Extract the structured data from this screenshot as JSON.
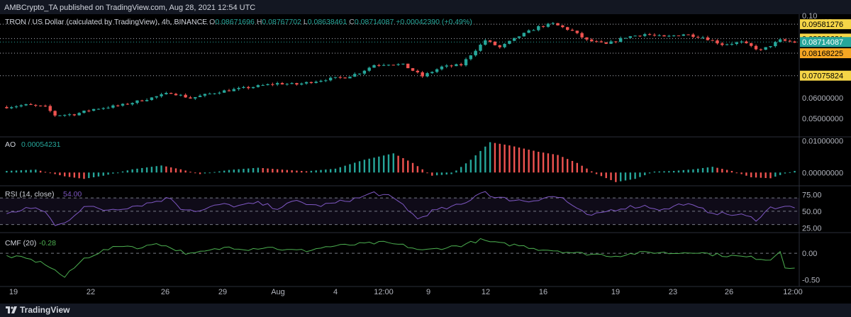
{
  "header": {
    "published": "AMBCrypto_TA published on TradingView.com, Aug 28, 2021 12:54 UTC"
  },
  "footer": {
    "brand": "TradingView"
  },
  "colors": {
    "up": "#26a69a",
    "down": "#ef5350",
    "rsi": "#7e57c2",
    "cmf": "#4caf50",
    "yellow": "#f5d547",
    "orange": "#f5a623",
    "teal": "#26a69a"
  },
  "chart_data": [
    {
      "type": "candlestick",
      "title": "TRON / US Dollar (calculated by TradingView), 4h, BINANCE",
      "ohlc": {
        "o_label": "O",
        "o": "0.08671696",
        "h_label": "H",
        "h": "0.08767702",
        "l_label": "L",
        "l": "0.08638461",
        "c_label": "C",
        "c": "0.08714087",
        "change": "+0.00042390 (+0.49%)"
      },
      "currency": "USD",
      "y_ticks": [
        "0.10",
        "0.06000000",
        "0.05000000"
      ],
      "ylim": [
        0.042,
        0.1
      ],
      "levels": [
        {
          "value": 0.09581276,
          "label": "0.09581276",
          "style": "yellow"
        },
        {
          "value": 0.08880621,
          "label": "0.08880621",
          "style": "yellow"
        },
        {
          "value": 0.08714087,
          "label": "0.08714087",
          "style": "teal"
        },
        {
          "value": 0.08168225,
          "label": "0.08168225",
          "style": "orange"
        },
        {
          "value": 0.07075824,
          "label": "0.07075824",
          "style": "yellow"
        }
      ],
      "x_ticks": [
        "19",
        "22",
        "26",
        "29",
        "Aug",
        "4",
        "12:00",
        "9",
        "12",
        "16",
        "19",
        "23",
        "26",
        "12:00"
      ],
      "trend": [
        [
          0,
          0.0555
        ],
        [
          4,
          0.0565
        ],
        [
          8,
          0.0555
        ],
        [
          10,
          0.0515
        ],
        [
          14,
          0.052
        ],
        [
          18,
          0.0545
        ],
        [
          24,
          0.0565
        ],
        [
          30,
          0.06
        ],
        [
          34,
          0.0625
        ],
        [
          38,
          0.0598
        ],
        [
          44,
          0.063
        ],
        [
          50,
          0.065
        ],
        [
          56,
          0.067
        ],
        [
          60,
          0.0665
        ],
        [
          66,
          0.069
        ],
        [
          70,
          0.07
        ],
        [
          73,
          0.0722
        ],
        [
          76,
          0.076
        ],
        [
          79,
          0.0765
        ],
        [
          82,
          0.076
        ],
        [
          86,
          0.0705
        ],
        [
          90,
          0.075
        ],
        [
          94,
          0.076
        ],
        [
          96,
          0.081
        ],
        [
          99,
          0.088
        ],
        [
          102,
          0.0845
        ],
        [
          106,
          0.09
        ],
        [
          110,
          0.0945
        ],
        [
          113,
          0.096
        ],
        [
          117,
          0.0925
        ],
        [
          120,
          0.088
        ],
        [
          124,
          0.086
        ],
        [
          128,
          0.0895
        ],
        [
          132,
          0.091
        ],
        [
          136,
          0.0895
        ],
        [
          140,
          0.091
        ],
        [
          144,
          0.0895
        ],
        [
          148,
          0.086
        ],
        [
          152,
          0.087
        ],
        [
          156,
          0.083
        ],
        [
          160,
          0.088
        ],
        [
          163,
          0.087
        ]
      ]
    },
    {
      "type": "bar",
      "name": "AO",
      "last_value": "0.00054231",
      "y_ticks": [
        "0.01000000",
        "0.00000000"
      ],
      "ylim": [
        -0.0035,
        0.0105
      ],
      "trend": [
        [
          0,
          0.0005
        ],
        [
          6,
          0.0009
        ],
        [
          12,
          -0.0012
        ],
        [
          16,
          -0.002
        ],
        [
          20,
          -0.001
        ],
        [
          26,
          0.001
        ],
        [
          32,
          0.0022
        ],
        [
          36,
          0.001
        ],
        [
          40,
          -0.0005
        ],
        [
          46,
          0.0008
        ],
        [
          52,
          0.0015
        ],
        [
          58,
          0.0008
        ],
        [
          62,
          0.0004
        ],
        [
          68,
          0.0012
        ],
        [
          74,
          0.004
        ],
        [
          80,
          0.006
        ],
        [
          84,
          0.003
        ],
        [
          88,
          -0.001
        ],
        [
          92,
          -0.0005
        ],
        [
          96,
          0.004
        ],
        [
          100,
          0.0095
        ],
        [
          104,
          0.0085
        ],
        [
          110,
          0.0065
        ],
        [
          114,
          0.0055
        ],
        [
          118,
          0.003
        ],
        [
          122,
          -0.0005
        ],
        [
          126,
          -0.003
        ],
        [
          130,
          -0.002
        ],
        [
          134,
          0.0003
        ],
        [
          138,
          0.0005
        ],
        [
          142,
          0.001
        ],
        [
          146,
          0.0018
        ],
        [
          150,
          0.0005
        ],
        [
          154,
          -0.0015
        ],
        [
          158,
          -0.0018
        ],
        [
          161,
          -0.0003
        ],
        [
          163,
          0.0005
        ]
      ]
    },
    {
      "type": "line",
      "name": "RSI (14, close)",
      "last_value": "54.00",
      "y_ticks": [
        "75.00",
        "50.00",
        "25.00"
      ],
      "bands": [
        70,
        50,
        30
      ],
      "ylim": [
        20,
        85
      ],
      "trend": [
        [
          0,
          45
        ],
        [
          4,
          55
        ],
        [
          8,
          50
        ],
        [
          10,
          28
        ],
        [
          12,
          32
        ],
        [
          16,
          58
        ],
        [
          20,
          52
        ],
        [
          24,
          55
        ],
        [
          28,
          60
        ],
        [
          32,
          67
        ],
        [
          34,
          70
        ],
        [
          36,
          55
        ],
        [
          40,
          50
        ],
        [
          44,
          60
        ],
        [
          48,
          58
        ],
        [
          52,
          62
        ],
        [
          56,
          55
        ],
        [
          60,
          65
        ],
        [
          64,
          58
        ],
        [
          68,
          62
        ],
        [
          70,
          66
        ],
        [
          73,
          70
        ],
        [
          76,
          78
        ],
        [
          79,
          72
        ],
        [
          82,
          60
        ],
        [
          85,
          38
        ],
        [
          88,
          50
        ],
        [
          92,
          56
        ],
        [
          95,
          62
        ],
        [
          97,
          75
        ],
        [
          99,
          80
        ],
        [
          101,
          70
        ],
        [
          104,
          68
        ],
        [
          108,
          65
        ],
        [
          112,
          72
        ],
        [
          115,
          70
        ],
        [
          118,
          52
        ],
        [
          121,
          42
        ],
        [
          124,
          50
        ],
        [
          128,
          56
        ],
        [
          132,
          58
        ],
        [
          136,
          52
        ],
        [
          140,
          62
        ],
        [
          144,
          52
        ],
        [
          148,
          46
        ],
        [
          152,
          44
        ],
        [
          155,
          38
        ],
        [
          158,
          55
        ],
        [
          161,
          58
        ],
        [
          163,
          54
        ]
      ]
    },
    {
      "type": "line",
      "name": "CMF (20)",
      "last_value": "-0.28",
      "y_ticks": [
        "0.00",
        "-0.50"
      ],
      "ylim": [
        -0.6,
        0.35
      ],
      "trend": [
        [
          0,
          -0.05
        ],
        [
          4,
          -0.1
        ],
        [
          8,
          -0.2
        ],
        [
          12,
          -0.45
        ],
        [
          16,
          -0.1
        ],
        [
          20,
          0.05
        ],
        [
          24,
          0.15
        ],
        [
          28,
          0.1
        ],
        [
          31,
          0.2
        ],
        [
          34,
          0.1
        ],
        [
          38,
          -0.02
        ],
        [
          42,
          0.05
        ],
        [
          46,
          0.12
        ],
        [
          50,
          0.08
        ],
        [
          54,
          0.12
        ],
        [
          58,
          0.06
        ],
        [
          62,
          0.05
        ],
        [
          66,
          0.12
        ],
        [
          70,
          0.15
        ],
        [
          74,
          0.18
        ],
        [
          78,
          0.2
        ],
        [
          82,
          0.15
        ],
        [
          86,
          0.05
        ],
        [
          90,
          0.1
        ],
        [
          94,
          0.15
        ],
        [
          98,
          0.25
        ],
        [
          102,
          0.18
        ],
        [
          106,
          0.15
        ],
        [
          110,
          0.08
        ],
        [
          114,
          0.05
        ],
        [
          118,
          0.0
        ],
        [
          122,
          -0.02
        ],
        [
          126,
          -0.05
        ],
        [
          130,
          0.0
        ],
        [
          134,
          0.02
        ],
        [
          138,
          0.0
        ],
        [
          142,
          0.03
        ],
        [
          146,
          -0.02
        ],
        [
          150,
          -0.05
        ],
        [
          154,
          -0.08
        ],
        [
          158,
          -0.12
        ],
        [
          160,
          0.05
        ],
        [
          161,
          -0.25
        ],
        [
          163,
          -0.28
        ]
      ]
    }
  ]
}
